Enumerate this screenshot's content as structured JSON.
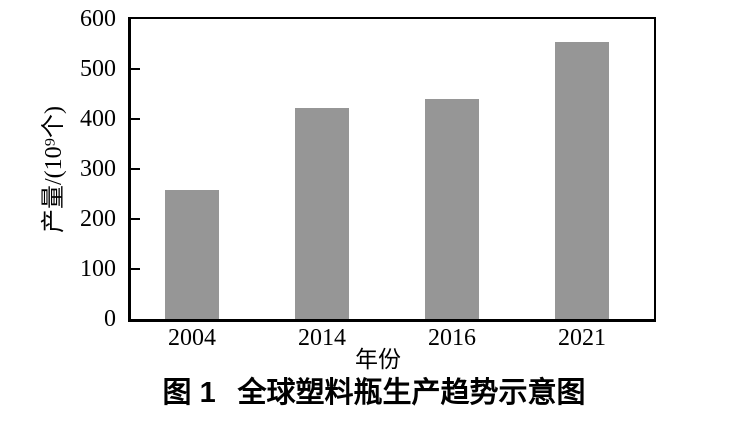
{
  "figure": {
    "caption": {
      "prefix": "图 1",
      "title": "全球塑料瓶生产趋势示意图"
    }
  },
  "chart_data": {
    "type": "bar",
    "categories": [
      "2004",
      "2014",
      "2016",
      "2021"
    ],
    "values": [
      258,
      422,
      440,
      553
    ],
    "title": "",
    "xlabel": "年份",
    "ylabel": "产量/(10⁹个)",
    "ylim": [
      0,
      600
    ],
    "ytick_step": 100,
    "yticks": [
      0,
      100,
      200,
      300,
      400,
      500,
      600
    ],
    "bar_color": "#969696",
    "axis_color": "#000000",
    "text_color": "#000000",
    "grid": false,
    "legend": null,
    "tick_direction": "in"
  }
}
